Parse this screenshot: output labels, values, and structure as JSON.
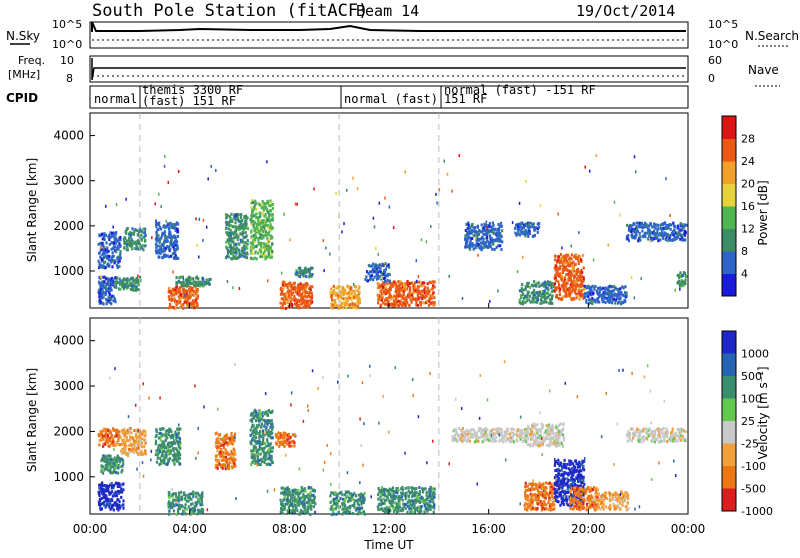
{
  "header": {
    "station": "South Pole Station (fitACF)",
    "beam": "Beam 14",
    "date": "19/Oct/2014"
  },
  "top_panels": {
    "nsky_label": "N.Sky",
    "nsky_ticks": [
      "10^5",
      "10^0"
    ],
    "nsearch_label": "N.Search",
    "nsearch_ticks": [
      "10^5",
      "10^0"
    ],
    "freq_label_top": "Freq.",
    "freq_label_bottom": "[MHz]",
    "freq_ticks": [
      "10",
      "8"
    ],
    "nave_label": "Nave",
    "nave_ticks": [
      "60",
      "0"
    ],
    "cpid_label": "CPID",
    "cpid_segments": [
      {
        "line1": "normal",
        "line2": ""
      },
      {
        "line1": "themis 3300 RF",
        "line2": "(fast) 151 RF"
      },
      {
        "line1": "normal (fast)",
        "line2": "151 RF"
      },
      {
        "line1": "normal (fast) -151 RF",
        "line2": ""
      }
    ]
  },
  "chart_data": [
    {
      "type": "heatmap",
      "panel": "power",
      "ylabel": "Slant Range [km]",
      "yticks": [
        "1000",
        "2000",
        "3000",
        "4000"
      ],
      "ylim": [
        180,
        4500
      ],
      "xlim": [
        0,
        24
      ],
      "colorbar_label": "Power [dB]",
      "colorbar_ticks": [
        "4",
        "8",
        "12",
        "16",
        "20",
        "24",
        "28"
      ],
      "colors": [
        "#1a1adc",
        "#2d64c8",
        "#3c8c64",
        "#50b450",
        "#e6d23c",
        "#f0a028",
        "#eb5a14",
        "#dc1414"
      ]
    },
    {
      "type": "heatmap",
      "panel": "velocity",
      "ylabel": "Slant Range [km]",
      "yticks": [
        "1000",
        "2000",
        "3000",
        "4000"
      ],
      "ylim": [
        180,
        4500
      ],
      "xlim": [
        0,
        24
      ],
      "xlabel": "Time UT",
      "xticks": [
        "00:00",
        "04:00",
        "08:00",
        "12:00",
        "16:00",
        "20:00",
        "00:00"
      ],
      "colorbar_label": "Velocity [m s⁻¹]",
      "colorbar_ticks": [
        "1000",
        "500",
        "100",
        "25",
        "-25",
        "-100",
        "-500",
        "-1000"
      ],
      "colors": [
        "#1e28c8",
        "#2864b4",
        "#3c8c6e",
        "#64c850",
        "#c8c8c8",
        "#f0a03c",
        "#eb7814",
        "#dc1e1e"
      ]
    }
  ]
}
